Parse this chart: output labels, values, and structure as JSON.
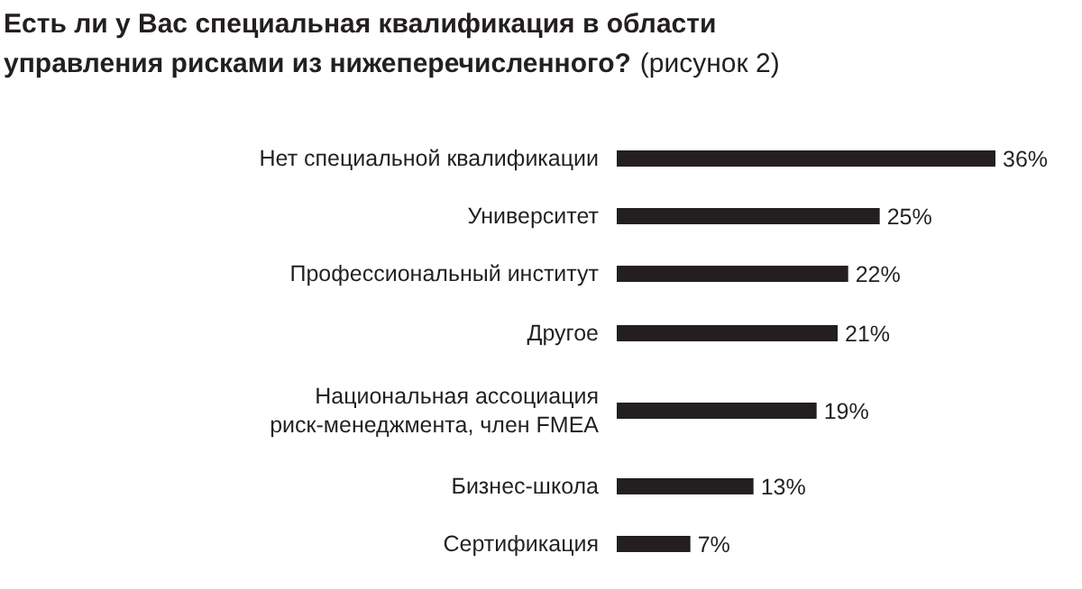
{
  "chart_data": {
    "type": "bar",
    "orientation": "horizontal",
    "title": "Есть ли у Вас специальная квалификация в области управления рисками из нижеперечисленного?",
    "subtitle": "(рисунок 2)",
    "categories": [
      "Нет специальной квалификации",
      "Университет",
      "Профессиональный институт",
      "Другое",
      "Национальная ассоциация риск-менеджмента, член FMEA",
      "Бизнес-школа",
      "Сертификация"
    ],
    "values": [
      36,
      25,
      22,
      21,
      19,
      13,
      7
    ],
    "value_labels": [
      "36%",
      "25%",
      "22%",
      "21%",
      "19%",
      "13%",
      "7%"
    ],
    "color": "#231f20"
  }
}
